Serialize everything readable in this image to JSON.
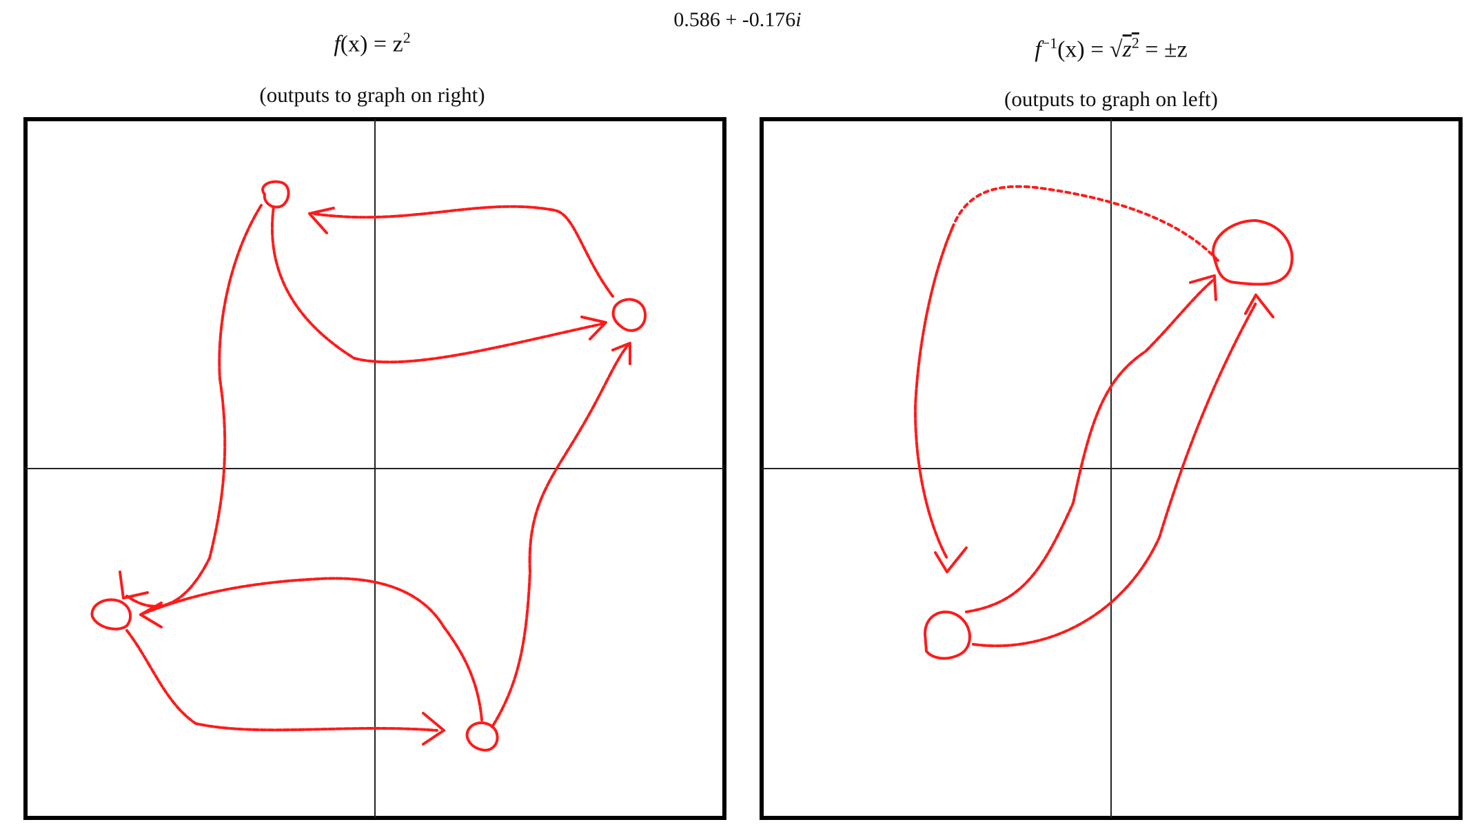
{
  "coordinate": {
    "real": "0.586",
    "sep": " + ",
    "imag": "-0.176",
    "unit": "i"
  },
  "left_panel": {
    "function_name": "f",
    "function_arg": "(x) = z",
    "function_exp": "2",
    "caption": "(outputs to graph on right)"
  },
  "right_panel": {
    "function_name": "f",
    "function_inv": "−1",
    "function_arg": "(x) = √",
    "function_rad": "z",
    "function_rad_exp": "2",
    "function_result": " = ±z",
    "caption": "(outputs to graph on left)"
  },
  "colors": {
    "stroke": "#ff1a1a",
    "axis": "#222222",
    "frame": "#000000"
  }
}
